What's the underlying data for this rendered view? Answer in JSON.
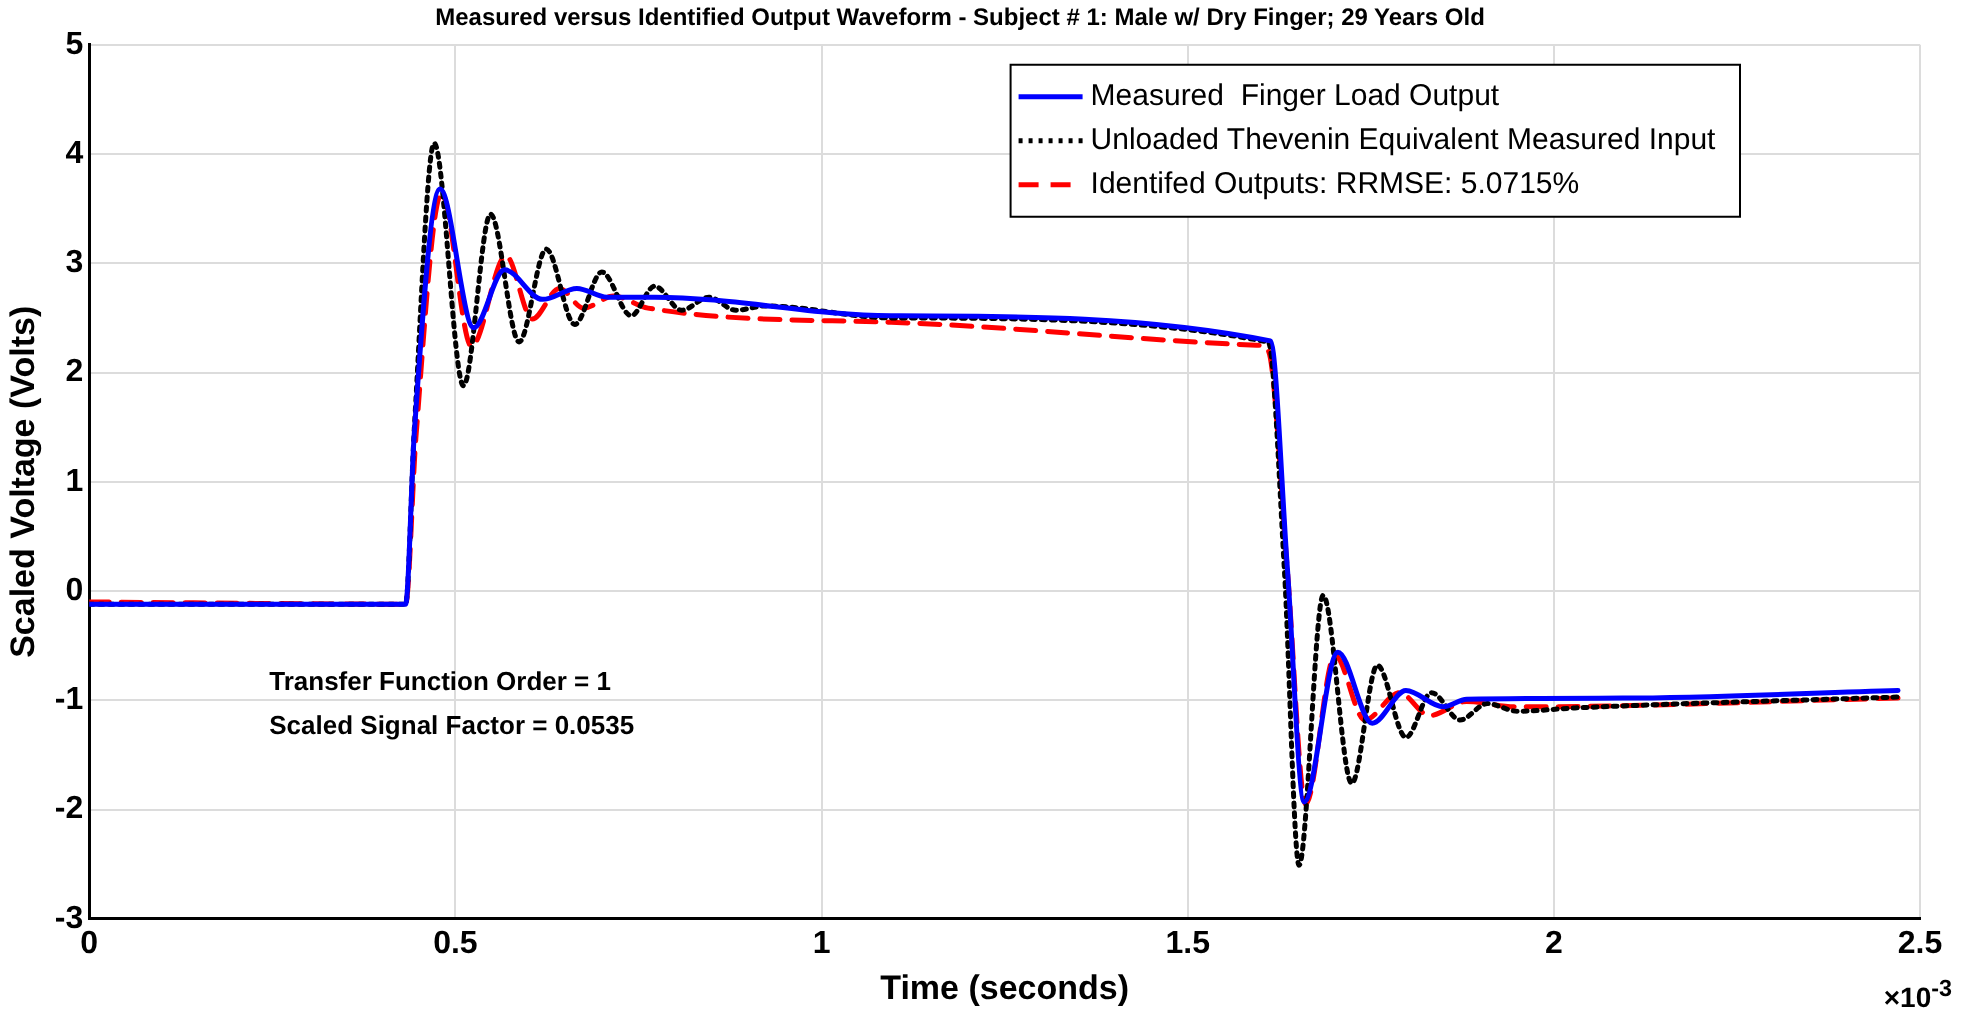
{
  "chart_data": {
    "type": "line",
    "title": "Measured versus Identified Output Waveform - Subject # 1: Male w/ Dry Finger; 29 Years Old",
    "xlabel": "Time (seconds)",
    "ylabel": "Scaled Voltage (Volts)",
    "xlim": [
      0,
      2.5
    ],
    "xticks": [
      0,
      0.5,
      1,
      1.5,
      2,
      2.5
    ],
    "ylim": [
      -3,
      5
    ],
    "yticks": [
      -3,
      -2,
      -1,
      0,
      1,
      2,
      3,
      4,
      5
    ],
    "grid": true,
    "legend": "top right",
    "marker": "none",
    "annotations": [
      "Transfer Function Order = 1",
      "Scaled Signal Factor = 0.0535",
      "×10$^{-3}$"
    ],
    "series": [
      {
        "name": "Measured  Finger Load Output",
        "color": "#0000ff",
        "line_style": "solid",
        "x": [
          0,
          0.432,
          0.444,
          0.479,
          0.525,
          0.567,
          0.619,
          0.666,
          0.707,
          0.772,
          1.095,
          1.613,
          1.636,
          1.659,
          1.705,
          1.752,
          1.798,
          1.849,
          1.881,
          2.094,
          2.47
        ],
        "values": [
          -0.12,
          -0.12,
          1.46,
          3.68,
          2.41,
          2.94,
          2.67,
          2.77,
          2.69,
          2.69,
          2.52,
          2.29,
          0.22,
          -1.93,
          -0.56,
          -1.21,
          -0.91,
          -1.06,
          -0.99,
          -0.98,
          -0.91
        ]
      },
      {
        "name": "Unloaded Thevenin Equivalent Measured Input",
        "color": "#000000",
        "line_style": "dotted",
        "x": [
          0,
          0.432,
          0.444,
          0.471,
          0.511,
          0.548,
          0.587,
          0.624,
          0.663,
          0.7,
          0.74,
          0.772,
          0.809,
          0.846,
          0.883,
          0.924,
          1.095,
          1.61,
          1.632,
          1.652,
          1.685,
          1.724,
          1.759,
          1.798,
          1.833,
          1.872,
          1.909,
          1.95,
          2.029,
          2.47
        ],
        "values": [
          -0.12,
          -0.12,
          1.5,
          4.1,
          1.88,
          3.45,
          2.28,
          3.13,
          2.44,
          2.92,
          2.52,
          2.79,
          2.57,
          2.69,
          2.57,
          2.61,
          2.5,
          2.28,
          0.2,
          -2.51,
          -0.04,
          -1.76,
          -0.68,
          -1.34,
          -0.93,
          -1.18,
          -1.03,
          -1.1,
          -1.07,
          -0.97
        ]
      },
      {
        "name": "Identifed Outputs: RRMSE: 5.0715%",
        "color": "#ff0000",
        "line_style": "dashed",
        "x": [
          0,
          0.432,
          0.446,
          0.481,
          0.522,
          0.569,
          0.605,
          0.642,
          0.675,
          0.716,
          0.763,
          1.095,
          1.594,
          1.61,
          1.636,
          1.661,
          1.701,
          1.742,
          1.789,
          1.83,
          1.881,
          1.946,
          2.47
        ],
        "values": [
          -0.1,
          -0.12,
          1.4,
          3.64,
          2.24,
          3.07,
          2.49,
          2.77,
          2.59,
          2.7,
          2.59,
          2.46,
          2.25,
          2.2,
          0.2,
          -1.95,
          -0.59,
          -1.18,
          -0.93,
          -1.14,
          -1.01,
          -1.06,
          -0.98
        ]
      }
    ]
  }
}
